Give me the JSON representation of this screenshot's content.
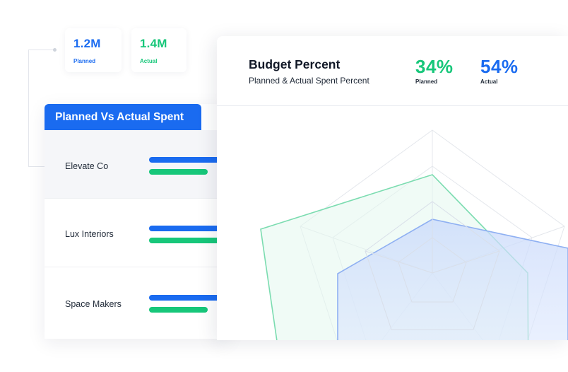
{
  "stats": {
    "planned": {
      "value": "1.2M",
      "label": "Planned"
    },
    "actual": {
      "value": "1.4M",
      "label": "Actual"
    }
  },
  "planned_vs_actual": {
    "title": "Planned Vs Actual Spent",
    "rows": [
      {
        "name": "Elevate Co"
      },
      {
        "name": "Lux Interiors"
      },
      {
        "name": "Space Makers"
      }
    ]
  },
  "budget": {
    "title": "Budget Percent",
    "subtitle": "Planned & Actual Spent Percent",
    "planned": {
      "value": "34%",
      "label": "Planned"
    },
    "actual": {
      "value": "54%",
      "label": "Actual"
    }
  },
  "colors": {
    "blue": "#1a6bf0",
    "green": "#17c77a",
    "planned_text": "#17c77a",
    "actual_text": "#1a6bf0"
  }
}
